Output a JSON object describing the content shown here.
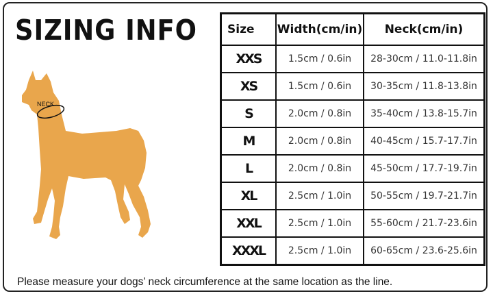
{
  "title": "SIZING INFO",
  "dog_label": "NECK",
  "dog_color": "#e9a64c",
  "table": {
    "headers": [
      "Size",
      "Width(cm/in)",
      "Neck(cm/in)"
    ],
    "rows": [
      {
        "size": "XXS",
        "width": "1.5cm / 0.6in",
        "neck": "28-30cm / 11.0-11.8in"
      },
      {
        "size": "XS",
        "width": "1.5cm / 0.6in",
        "neck": "30-35cm / 11.8-13.8in"
      },
      {
        "size": "S",
        "width": "2.0cm / 0.8in",
        "neck": "35-40cm / 13.8-15.7in"
      },
      {
        "size": "M",
        "width": "2.0cm / 0.8in",
        "neck": "40-45cm / 15.7-17.7in"
      },
      {
        "size": "L",
        "width": "2.0cm / 0.8in",
        "neck": "45-50cm / 17.7-19.7in"
      },
      {
        "size": "XL",
        "width": "2.5cm / 1.0in",
        "neck": "50-55cm / 19.7-21.7in"
      },
      {
        "size": "XXL",
        "width": "2.5cm / 1.0in",
        "neck": "55-60cm / 21.7-23.6in"
      },
      {
        "size": "XXXL",
        "width": "2.5cm / 1.0in",
        "neck": "60-65cm / 23.6-25.6in"
      }
    ]
  },
  "note": "Please measure your dogs’  neck circumference at the same location as the line."
}
